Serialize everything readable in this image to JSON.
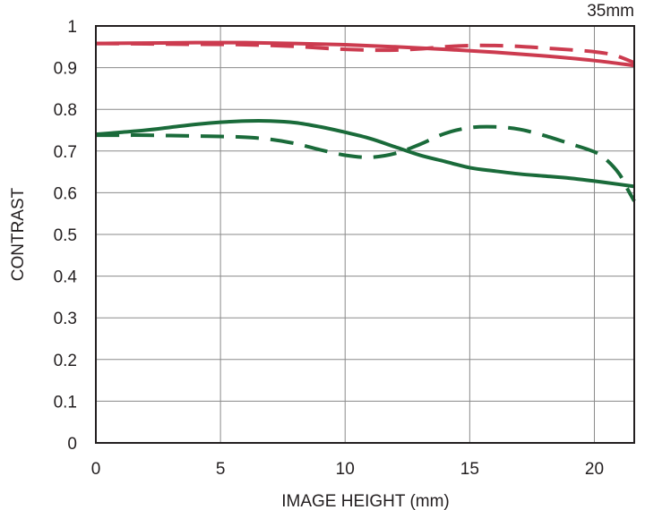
{
  "chart_data": {
    "type": "line",
    "title": "35mm",
    "xlabel": "IMAGE HEIGHT (mm)",
    "ylabel": "CONTRAST",
    "xlim": [
      0,
      21.6
    ],
    "ylim": [
      0,
      1
    ],
    "x_ticks": [
      "0",
      "5",
      "10",
      "15",
      "20"
    ],
    "y_ticks": [
      "0",
      "0.1",
      "0.2",
      "0.3",
      "0.4",
      "0.5",
      "0.6",
      "0.7",
      "0.8",
      "0.9",
      "1"
    ],
    "grid": true,
    "series": [
      {
        "color": "#cc3b4f",
        "style": "solid",
        "x": [
          0,
          2,
          4,
          6,
          8,
          10,
          12,
          14,
          16,
          18,
          20,
          21.6
        ],
        "y": [
          0.958,
          0.959,
          0.96,
          0.96,
          0.958,
          0.955,
          0.95,
          0.944,
          0.937,
          0.928,
          0.917,
          0.905
        ]
      },
      {
        "color": "#cc3b4f",
        "style": "dashed",
        "x": [
          0,
          2,
          4,
          6,
          8,
          9.3,
          10,
          11,
          12,
          13,
          14,
          15,
          16,
          17,
          18,
          19,
          20,
          20.8,
          21.6
        ],
        "y": [
          0.958,
          0.957,
          0.956,
          0.955,
          0.951,
          0.946,
          0.944,
          0.942,
          0.942,
          0.945,
          0.95,
          0.953,
          0.953,
          0.951,
          0.947,
          0.943,
          0.938,
          0.93,
          0.912
        ]
      },
      {
        "color": "#1a6b3a",
        "style": "solid",
        "x": [
          0,
          1,
          2,
          3,
          4,
          5,
          6,
          7,
          8,
          9,
          10,
          11,
          12,
          13,
          14,
          15,
          16,
          17,
          18,
          19,
          20,
          21,
          21.6
        ],
        "y": [
          0.74,
          0.745,
          0.75,
          0.757,
          0.764,
          0.769,
          0.772,
          0.772,
          0.768,
          0.758,
          0.745,
          0.73,
          0.71,
          0.69,
          0.675,
          0.66,
          0.652,
          0.645,
          0.64,
          0.635,
          0.628,
          0.62,
          0.615
        ]
      },
      {
        "color": "#1a6b3a",
        "style": "dashed",
        "x": [
          0,
          1,
          2,
          3,
          4,
          5,
          6,
          7,
          8,
          9,
          10,
          11,
          12,
          13,
          14,
          15,
          16,
          17,
          18,
          19,
          20,
          20.5,
          21,
          21.3,
          21.6
        ],
        "y": [
          0.738,
          0.738,
          0.738,
          0.737,
          0.736,
          0.735,
          0.733,
          0.728,
          0.718,
          0.703,
          0.69,
          0.685,
          0.694,
          0.716,
          0.742,
          0.756,
          0.758,
          0.752,
          0.737,
          0.718,
          0.698,
          0.678,
          0.645,
          0.612,
          0.58
        ]
      }
    ]
  }
}
